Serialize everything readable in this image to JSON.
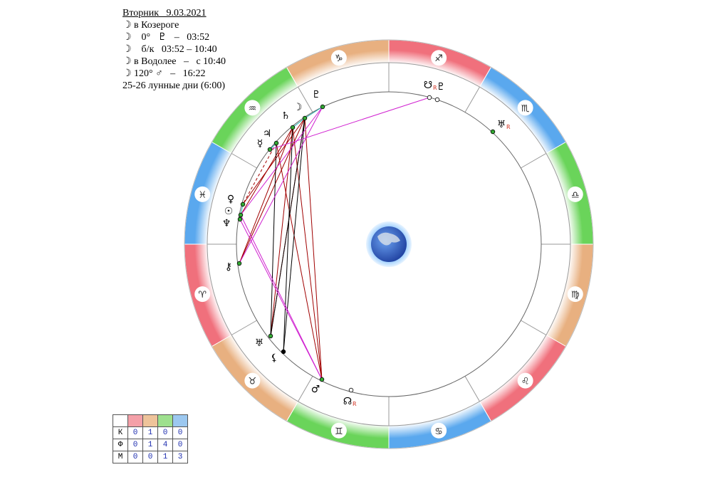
{
  "header": {
    "title": "Вторник   9.03.2021",
    "lines": [
      "☽ в Козероге",
      "☽    0°   ♇   –   03:52",
      "☽    б/к   03:52 – 10:40",
      "☽ в Водолее   –   с 10:40",
      "☽ 120° ♂   –   16:22",
      "25-26 лунные дни (6:00)"
    ]
  },
  "zodiac": [
    "♐",
    "♏",
    "♎",
    "♍",
    "♌",
    "♋",
    "♊",
    "♉",
    "♈",
    "♓",
    "♒",
    "♑"
  ],
  "planets": [
    {
      "glyph": "♇"
    },
    {
      "glyph": "☽"
    },
    {
      "glyph": "♄"
    },
    {
      "glyph": "♃"
    },
    {
      "glyph": "☿"
    },
    {
      "glyph": "♀"
    },
    {
      "glyph": "☉"
    },
    {
      "glyph": "♆"
    },
    {
      "glyph": "⚷"
    },
    {
      "glyph": "♅"
    },
    {
      "glyph": "⚸"
    },
    {
      "glyph": "♂"
    },
    {
      "glyph": "☊",
      "retro": "R"
    },
    {
      "glyph": "☋",
      "retro": "R"
    },
    {
      "glyph": "♇"
    },
    {
      "glyph": "♅",
      "retro": "R"
    }
  ],
  "table": {
    "rows": [
      [
        "К",
        "0",
        "1",
        "0",
        "0"
      ],
      [
        "Ф",
        "0",
        "1",
        "4",
        "0"
      ],
      [
        "М",
        "0",
        "0",
        "1",
        "3"
      ]
    ]
  }
}
